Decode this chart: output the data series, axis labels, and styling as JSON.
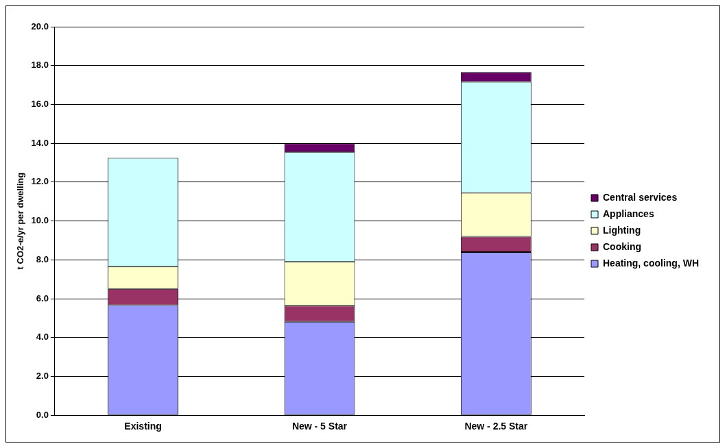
{
  "chart_data": {
    "type": "bar",
    "stacked": true,
    "ylabel": "t CO2-e/yr per dwelling",
    "categories": [
      "Existing",
      "New - 5 Star",
      "New - 2.5 Star"
    ],
    "series": [
      {
        "name": "Heating, cooling, WH",
        "color": "#9999ff",
        "values": [
          5.67,
          4.81,
          8.4
        ]
      },
      {
        "name": "Cooking",
        "color": "#993366",
        "values": [
          0.83,
          0.83,
          0.79
        ]
      },
      {
        "name": "Lighting",
        "color": "#ffffcc",
        "values": [
          1.15,
          2.26,
          2.26
        ]
      },
      {
        "name": "Appliances",
        "color": "#ccffff",
        "values": [
          5.6,
          5.64,
          5.71
        ]
      },
      {
        "name": "Central services",
        "color": "#660066",
        "values": [
          0,
          0.46,
          0.5
        ]
      }
    ],
    "ylim": [
      0,
      20
    ],
    "yticks": [
      {
        "value": 0,
        "label": "0.0"
      },
      {
        "value": 2,
        "label": "2.0"
      },
      {
        "value": 4,
        "label": "4.0"
      },
      {
        "value": 6,
        "label": "6.0"
      },
      {
        "value": 8,
        "label": "8.0"
      },
      {
        "value": 10,
        "label": "10.0"
      },
      {
        "value": 12,
        "label": "12.0"
      },
      {
        "value": 14,
        "label": "14.0"
      },
      {
        "value": 16,
        "label": "16.0"
      },
      {
        "value": 18,
        "label": "18.0"
      },
      {
        "value": 20,
        "label": "20.0"
      }
    ],
    "grid": "y",
    "legend": "right"
  }
}
